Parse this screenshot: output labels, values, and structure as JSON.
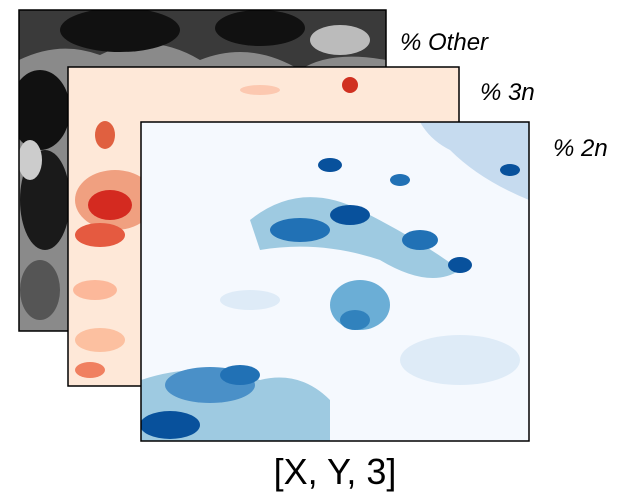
{
  "layers": [
    {
      "label": "% Other"
    },
    {
      "label": "% 3n"
    },
    {
      "label": "% 2n"
    }
  ],
  "caption": "[X, Y, 3]"
}
